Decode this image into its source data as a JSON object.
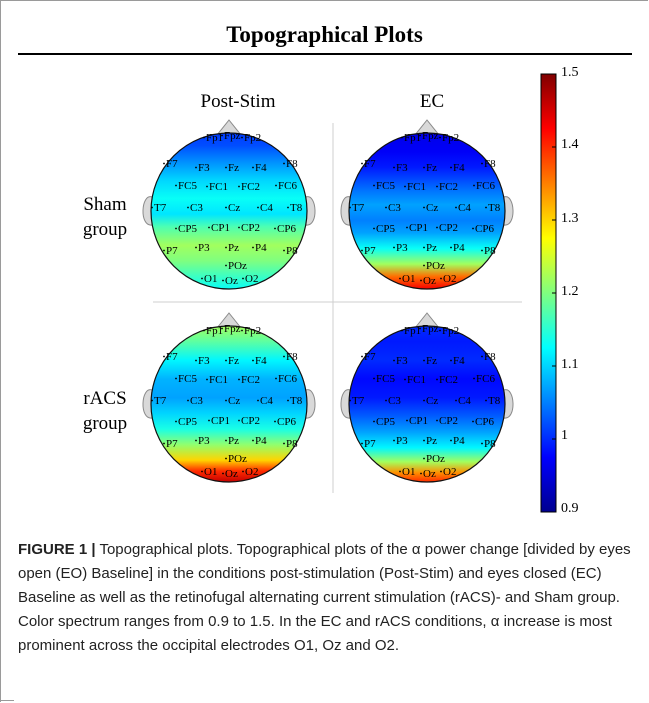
{
  "figure": {
    "title": "Topographical Plots",
    "columns": [
      "Post-Stim",
      "EC"
    ],
    "rows": [
      {
        "line1": "Sham",
        "line2": "group"
      },
      {
        "line1": "rACS",
        "line2": "group"
      }
    ]
  },
  "chart_data": {
    "type": "heatmap",
    "title": "Topographical Plots",
    "panels": [
      {
        "column": "Post-Stim",
        "row": "Sham group",
        "pattern": "sham_post"
      },
      {
        "column": "EC",
        "row": "Sham group",
        "pattern": "sham_ec"
      },
      {
        "column": "Post-Stim",
        "row": "rACS group",
        "pattern": "racs_post"
      },
      {
        "column": "EC",
        "row": "rACS group",
        "pattern": "racs_ec"
      }
    ],
    "electrodes": [
      "Fp1",
      "Fpz",
      "Fp2",
      "F7",
      "F3",
      "Fz",
      "F4",
      "F8",
      "FC5",
      "FC1",
      "FC2",
      "FC6",
      "T7",
      "C3",
      "Cz",
      "C4",
      "T8",
      "CP5",
      "CP1",
      "CP2",
      "CP6",
      "P7",
      "P3",
      "Pz",
      "P4",
      "P8",
      "POz",
      "O1",
      "Oz",
      "O2"
    ],
    "colorbar": {
      "min": 0.9,
      "max": 1.5,
      "ticks": [
        "1.5",
        "1.4",
        "1.3",
        "1.2",
        "1.1",
        "1",
        "0.9"
      ],
      "colormap": "jet"
    }
  },
  "caption": {
    "label": "FIGURE 1 |",
    "text": "Topographical plots. Topographical plots of the α power change [divided by eyes open (EO) Baseline] in the conditions post-stimulation (Post-Stim) and eyes closed (EC) Baseline as well as the retinofugal alternating current stimulation (rACS)- and Sham group. Color spectrum ranges from 0.9 to 1.5. In the EC and rACS conditions, α increase is most prominent across the occipital electrodes O1, Oz and O2."
  }
}
